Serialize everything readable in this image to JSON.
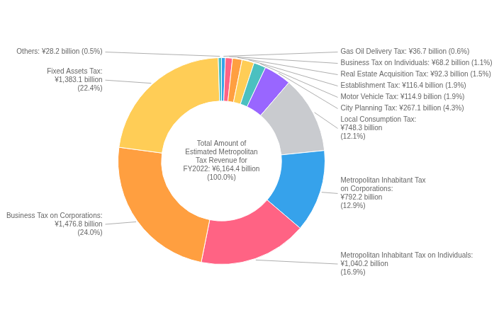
{
  "chart_data": {
    "type": "doughnut",
    "categories": [
      "Gas Oil Delivery Tax: ¥36.7 billion (0.6%)",
      "Business Tax on Individuals: ¥68.2 billion (1.1%)",
      "Real Estate Acquisition Tax: ¥92.3 billion (1.5%)",
      "Establishment Tax: ¥116.4 billion (1.9%)",
      "Motor Vehicle Tax: ¥114.9 billion (1.9%)",
      "City Planning Tax: ¥267.1 billion (4.3%)",
      "Local Consumption Tax:\n¥748.3 billion\n(12.1%)",
      "Metropolitan Inhabitant Tax\non Corporations:\n¥792.2 billion\n(12.9%)",
      "Metropolitan Inhabitant Tax on Individuals:\n¥1,040.2 billion\n(16.9%)",
      "Business Tax on Corporations:\n¥1,476.8 billion\n(24.0%)",
      "Fixed Assets Tax:\n¥1,383.1 billion\n(22.4%)",
      "Others: ¥28.2 billion (0.5%)"
    ],
    "values": [
      0.6,
      1.1,
      1.5,
      1.9,
      1.9,
      4.3,
      12.1,
      12.9,
      16.9,
      24.0,
      22.4,
      0.5
    ],
    "annotations": [
      "Total Amount of\nEstimated Metropolitan\nTax Revenue for\nFY2022: ¥6,164.4 billion\n(100.0%)"
    ]
  }
}
